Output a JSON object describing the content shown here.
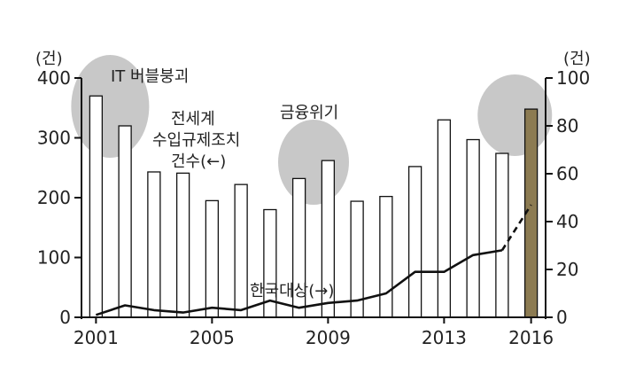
{
  "chart_data": {
    "type": "bar",
    "title": "",
    "x": [
      2001,
      2002,
      2003,
      2004,
      2005,
      2006,
      2007,
      2008,
      2009,
      2010,
      2011,
      2012,
      2013,
      2014,
      2015,
      2016
    ],
    "x_tick_labels": [
      "2001",
      "2005",
      "2009",
      "2013",
      "2016"
    ],
    "x_tick_values": [
      2001,
      2005,
      2009,
      2013,
      2016
    ],
    "y_left": {
      "unit": "(건)",
      "ylim": [
        0,
        400
      ],
      "ticks": [
        "0",
        "100",
        "200",
        "300",
        "400"
      ],
      "tick_values": [
        0,
        100,
        200,
        300,
        400
      ]
    },
    "y_right": {
      "unit": "(건)",
      "ylim": [
        0,
        100
      ],
      "ticks": [
        "0",
        "20",
        "40",
        "60",
        "80",
        "100"
      ],
      "tick_values": [
        0,
        20,
        40,
        60,
        80,
        100
      ]
    },
    "series": [
      {
        "name": "전세계 수입규제조치 건수(←)",
        "type": "bar",
        "axis": "left",
        "values": [
          370,
          320,
          243,
          241,
          195,
          222,
          180,
          232,
          262,
          194,
          202,
          252,
          330,
          297,
          274,
          348
        ],
        "colors": [
          "#ffffff",
          "#ffffff",
          "#ffffff",
          "#ffffff",
          "#ffffff",
          "#ffffff",
          "#ffffff",
          "#ffffff",
          "#ffffff",
          "#ffffff",
          "#ffffff",
          "#ffffff",
          "#ffffff",
          "#ffffff",
          "#ffffff",
          "#8c7b52"
        ]
      },
      {
        "name": "한국대상(→)",
        "type": "line",
        "axis": "right",
        "values": [
          1,
          5,
          3,
          2,
          4,
          3,
          7,
          4,
          6,
          7,
          10,
          19,
          19,
          26,
          28,
          47
        ],
        "dashed_last_segment": true
      }
    ],
    "annotations": [
      {
        "text": "IT 버블붕괴",
        "near_x": 2001.5
      },
      {
        "text": "금융위기",
        "near_x": 2008.5
      },
      {
        "text_lines": [
          "전세계",
          "수입규제조치",
          "건수(←)"
        ]
      },
      {
        "text": "한국대상(→)"
      }
    ],
    "highlight_color": "#c8c8c8",
    "grid": false
  }
}
